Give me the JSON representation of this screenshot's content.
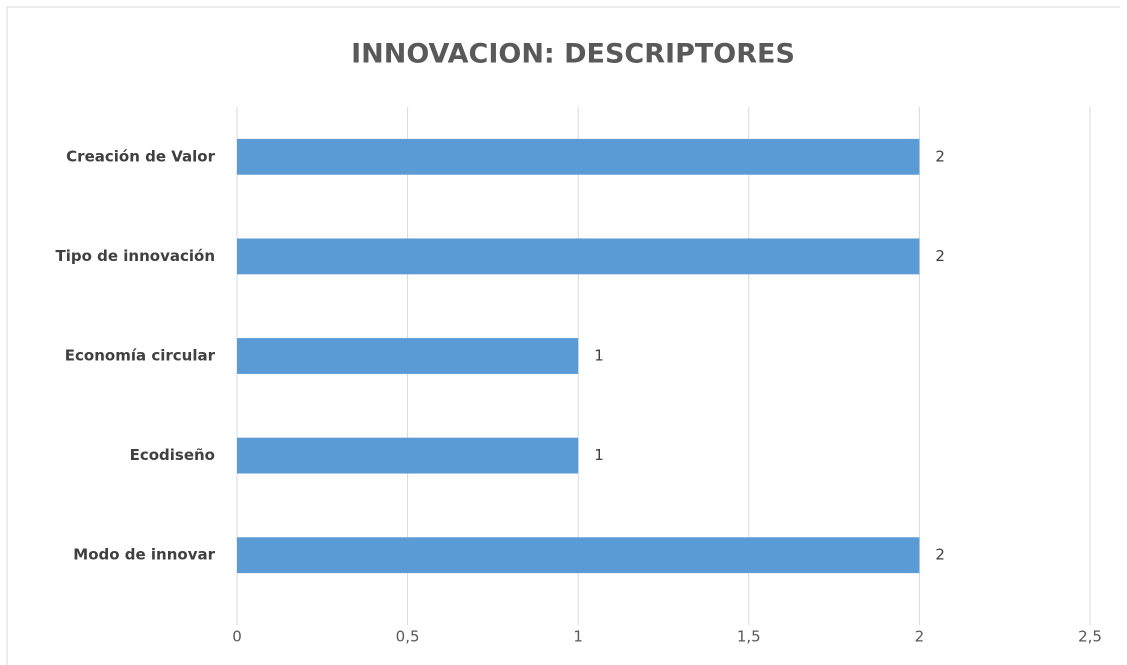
{
  "chart_data": {
    "type": "bar",
    "orientation": "horizontal",
    "title": "INNOVACION: DESCRIPTORES",
    "categories": [
      "Creación de Valor",
      "Tipo de innovación",
      "Economía circular",
      "Ecodiseño",
      "Modo de innovar"
    ],
    "values": [
      2,
      2,
      1,
      1,
      2
    ],
    "color": "#5b9bd5",
    "xlim": [
      0,
      2.5
    ],
    "xticks": [
      0,
      {
        "value": 0.5,
        "label": "0,5"
      },
      1,
      {
        "value": 1.5,
        "label": "1,5"
      },
      2,
      {
        "value": 2.5,
        "label": "2,5"
      }
    ],
    "grid": true
  }
}
